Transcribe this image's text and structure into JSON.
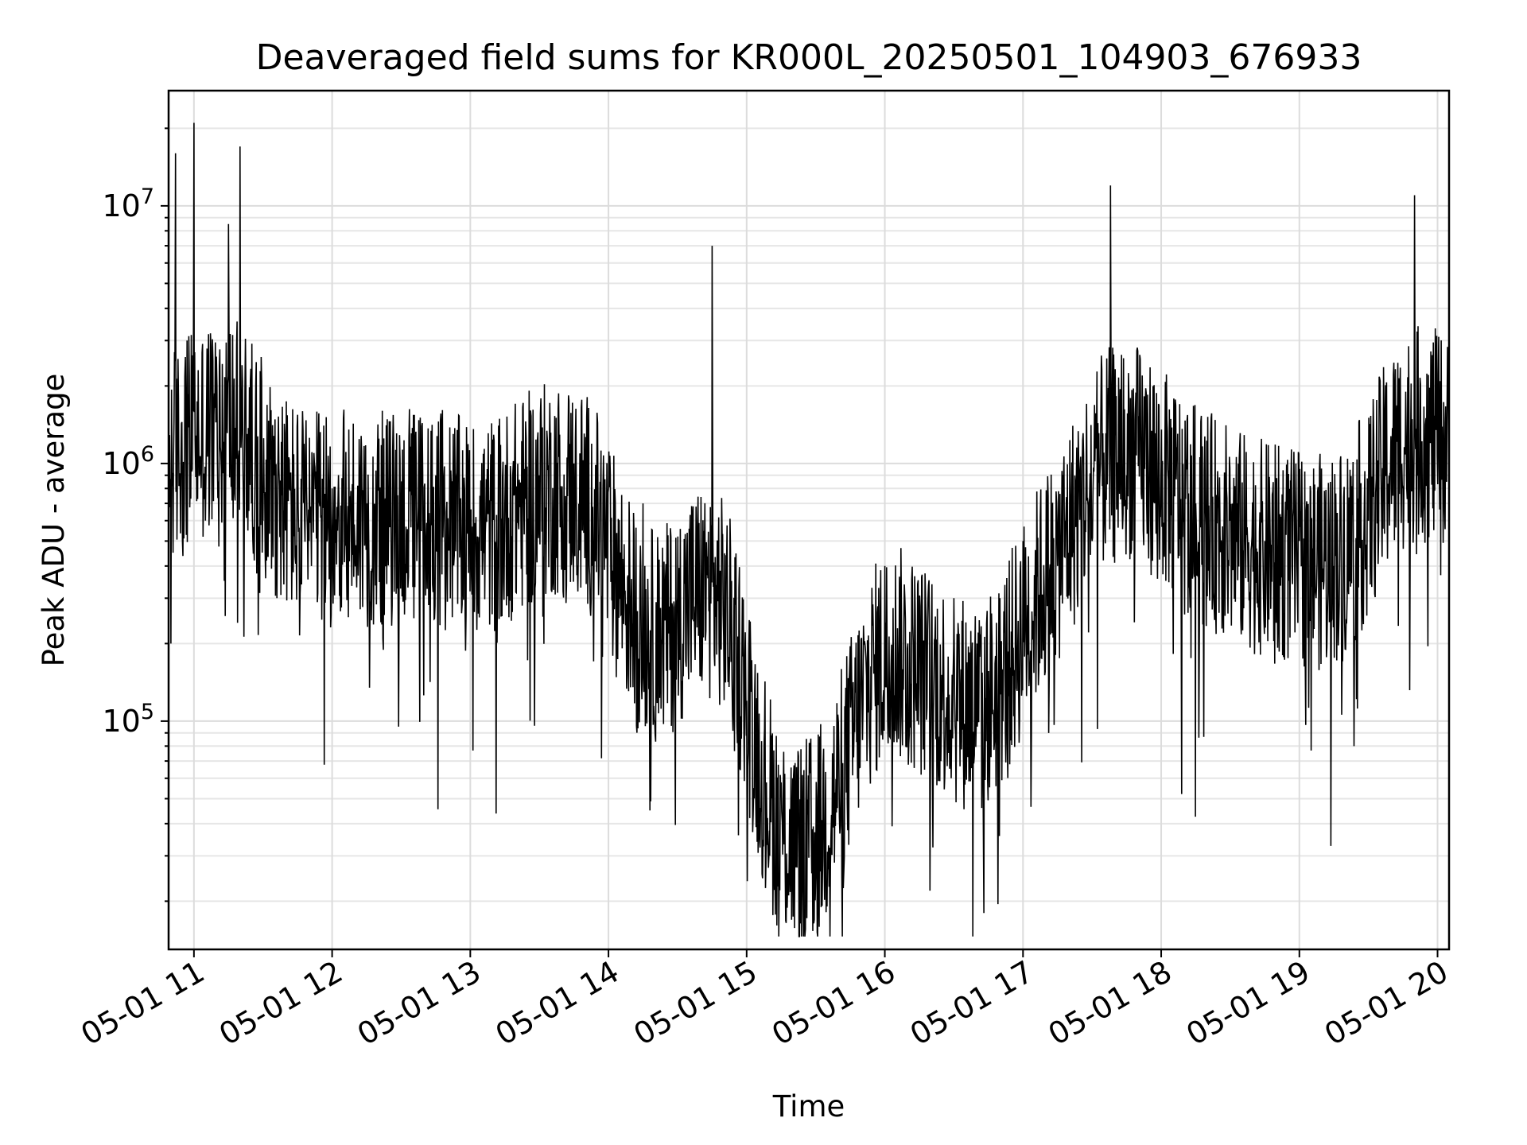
{
  "chart_data": {
    "type": "line",
    "title": "Deaveraged field sums for KR000L_20250501_104903_676933",
    "xlabel": "Time",
    "ylabel": "Peak ADU - average",
    "yscale": "log",
    "grid": true,
    "line_color": "#000000",
    "xlim": [
      "2025-05-01 10:49",
      "2025-05-01 20:05"
    ],
    "ylim": [
      13000,
      28000000
    ],
    "x_ticks": [
      "05-01 11",
      "05-01 12",
      "05-01 13",
      "05-01 14",
      "05-01 15",
      "05-01 16",
      "05-01 17",
      "05-01 18",
      "05-01 19",
      "05-01 20"
    ],
    "y_ticks": [
      {
        "base": "10",
        "exp": "5",
        "value": 100000
      },
      {
        "base": "10",
        "exp": "6",
        "value": 1000000
      },
      {
        "base": "10",
        "exp": "7",
        "value": 10000000
      }
    ],
    "series": [
      {
        "x": [
          "2025-05-01 10:49",
          "2025-05-01 10:50",
          "2025-05-01 10:52",
          "2025-05-01 10:54",
          "2025-05-01 10:55",
          "2025-05-01 10:57",
          "2025-05-01 11:00",
          "2025-05-01 11:02",
          "2025-05-01 11:05",
          "2025-05-01 11:10",
          "2025-05-01 11:15",
          "2025-05-01 11:20",
          "2025-05-01 11:25",
          "2025-05-01 11:30",
          "2025-05-01 11:35",
          "2025-05-01 11:40",
          "2025-05-01 11:50",
          "2025-05-01 12:00",
          "2025-05-01 12:15",
          "2025-05-01 12:30",
          "2025-05-01 12:45",
          "2025-05-01 13:00",
          "2025-05-01 13:15",
          "2025-05-01 13:30",
          "2025-05-01 13:45",
          "2025-05-01 14:00",
          "2025-05-01 14:15",
          "2025-05-01 14:18",
          "2025-05-01 14:30",
          "2025-05-01 14:40",
          "2025-05-01 14:45",
          "2025-05-01 14:48",
          "2025-05-01 15:00",
          "2025-05-01 15:10",
          "2025-05-01 15:20",
          "2025-05-01 15:25",
          "2025-05-01 15:30",
          "2025-05-01 15:40",
          "2025-05-01 15:50",
          "2025-05-01 16:00",
          "2025-05-01 16:10",
          "2025-05-01 16:20",
          "2025-05-01 16:30",
          "2025-05-01 16:40",
          "2025-05-01 16:43",
          "2025-05-01 16:50",
          "2025-05-01 17:00",
          "2025-05-01 17:15",
          "2025-05-01 17:30",
          "2025-05-01 17:38",
          "2025-05-01 17:45",
          "2025-05-01 18:00",
          "2025-05-01 18:15",
          "2025-05-01 18:30",
          "2025-05-01 18:45",
          "2025-05-01 19:00",
          "2025-05-01 19:15",
          "2025-05-01 19:30",
          "2025-05-01 19:45",
          "2025-05-01 19:50",
          "2025-05-01 19:55",
          "2025-05-01 20:05"
        ],
        "y": [
          1200000,
          200000,
          16000000,
          900000,
          500000,
          3000000,
          21000000,
          1500000,
          600000,
          2000000,
          8500000,
          17000000,
          700000,
          600000,
          900000,
          700000,
          500000,
          800000,
          700000,
          600000,
          900000,
          500000,
          700000,
          900000,
          1000000,
          800000,
          700000,
          45000,
          300000,
          150000,
          7000000,
          200000,
          120000,
          30000,
          60000,
          18000,
          25000,
          80000,
          150000,
          400000,
          200000,
          100000,
          300000,
          200000,
          18000,
          300000,
          500000,
          400000,
          500000,
          12000000,
          900000,
          1000000,
          700000,
          600000,
          500000,
          500000,
          400000,
          600000,
          800000,
          11000000,
          1500000,
          800000
        ]
      }
    ]
  }
}
